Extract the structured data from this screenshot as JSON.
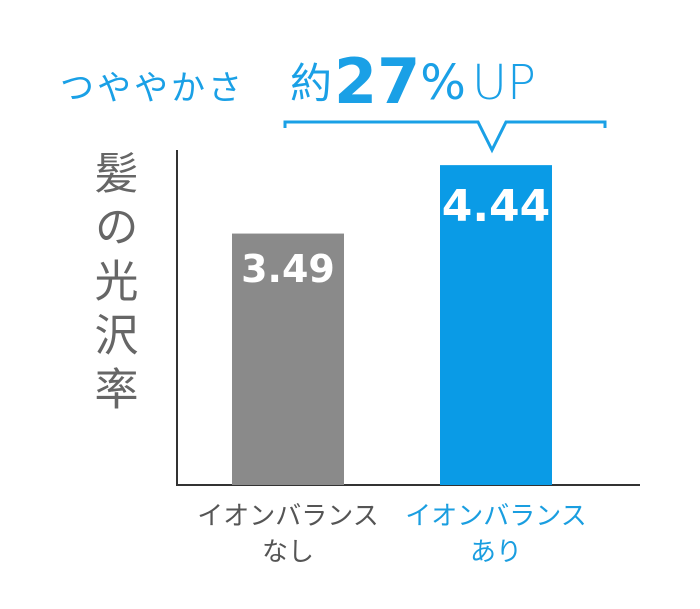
{
  "chart_data": {
    "type": "bar",
    "headline": {
      "lead": "つややかさ",
      "prefix": "約",
      "figure": "27",
      "unit": "%",
      "suffix": "UP"
    },
    "ylabel": "髪の光沢率",
    "categories": [
      [
        "イオンバランス",
        "なし"
      ],
      [
        "イオンバランス",
        "あり"
      ]
    ],
    "values": [
      3.49,
      4.44
    ],
    "colors": [
      "#8a8a8a",
      "#0a9be6"
    ],
    "label_colors": [
      "#555555",
      "#1a9ee0"
    ],
    "ylim": [
      0,
      4.65
    ]
  }
}
